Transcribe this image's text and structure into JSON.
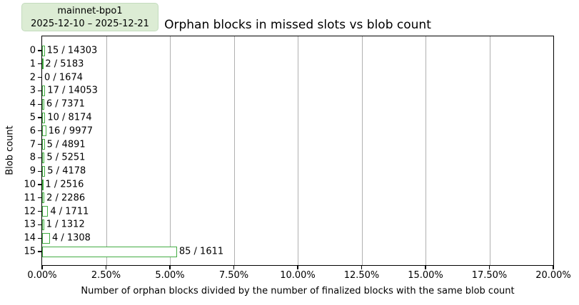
{
  "legend": {
    "title": "mainnet-bpo1",
    "subtitle": "2025-12-10 – 2025-12-21",
    "background": "#dcecd4",
    "border_color": "#c3dcbd"
  },
  "chart_data": {
    "type": "bar",
    "orientation": "horizontal",
    "title": "Orphan blocks in missed slots vs blob count",
    "xlabel": "Number of orphan blocks divided by the number of finalized blocks with the same blob count",
    "ylabel": "Blob count",
    "xlim": [
      0,
      20
    ],
    "x_tick_labels": [
      "0.00%",
      "2.50%",
      "5.00%",
      "7.50%",
      "10.00%",
      "12.50%",
      "15.00%",
      "17.50%",
      "20.00%"
    ],
    "grid": "vertical",
    "grid_color": "#b0b0b0",
    "legend_position": "top-left-outside",
    "bar_edge_color": "#44ad44",
    "bar_fill_color": "#ffffff",
    "categories": [
      "0",
      "1",
      "2",
      "3",
      "4",
      "5",
      "6",
      "7",
      "8",
      "9",
      "10",
      "11",
      "12",
      "13",
      "14",
      "15"
    ],
    "bars": [
      {
        "blob_count": 0,
        "orphan_blocks": 15,
        "finalized_blocks": 14303,
        "label": "15 / 14303",
        "pct": 0.1049
      },
      {
        "blob_count": 1,
        "orphan_blocks": 2,
        "finalized_blocks": 5183,
        "label": "2 / 5183",
        "pct": 0.0386
      },
      {
        "blob_count": 2,
        "orphan_blocks": 0,
        "finalized_blocks": 1674,
        "label": "0 / 1674",
        "pct": 0.0
      },
      {
        "blob_count": 3,
        "orphan_blocks": 17,
        "finalized_blocks": 14053,
        "label": "17 / 14053",
        "pct": 0.121
      },
      {
        "blob_count": 4,
        "orphan_blocks": 6,
        "finalized_blocks": 7371,
        "label": "6 / 7371",
        "pct": 0.0814
      },
      {
        "blob_count": 5,
        "orphan_blocks": 10,
        "finalized_blocks": 8174,
        "label": "10 / 8174",
        "pct": 0.1223
      },
      {
        "blob_count": 6,
        "orphan_blocks": 16,
        "finalized_blocks": 9977,
        "label": "16 / 9977",
        "pct": 0.1604
      },
      {
        "blob_count": 7,
        "orphan_blocks": 5,
        "finalized_blocks": 4891,
        "label": "5 / 4891",
        "pct": 0.1022
      },
      {
        "blob_count": 8,
        "orphan_blocks": 5,
        "finalized_blocks": 5251,
        "label": "5 / 5251",
        "pct": 0.0952
      },
      {
        "blob_count": 9,
        "orphan_blocks": 5,
        "finalized_blocks": 4178,
        "label": "5 / 4178",
        "pct": 0.1197
      },
      {
        "blob_count": 10,
        "orphan_blocks": 1,
        "finalized_blocks": 2516,
        "label": "1 / 2516",
        "pct": 0.0397
      },
      {
        "blob_count": 11,
        "orphan_blocks": 2,
        "finalized_blocks": 2286,
        "label": "2 / 2286",
        "pct": 0.0875
      },
      {
        "blob_count": 12,
        "orphan_blocks": 4,
        "finalized_blocks": 1711,
        "label": "4 / 1711",
        "pct": 0.2338
      },
      {
        "blob_count": 13,
        "orphan_blocks": 1,
        "finalized_blocks": 1312,
        "label": "1 / 1312",
        "pct": 0.0762
      },
      {
        "blob_count": 14,
        "orphan_blocks": 4,
        "finalized_blocks": 1308,
        "label": "4 / 1308",
        "pct": 0.3058
      },
      {
        "blob_count": 15,
        "orphan_blocks": 85,
        "finalized_blocks": 1611,
        "label": "85 / 1611",
        "pct": 5.2762
      }
    ]
  }
}
